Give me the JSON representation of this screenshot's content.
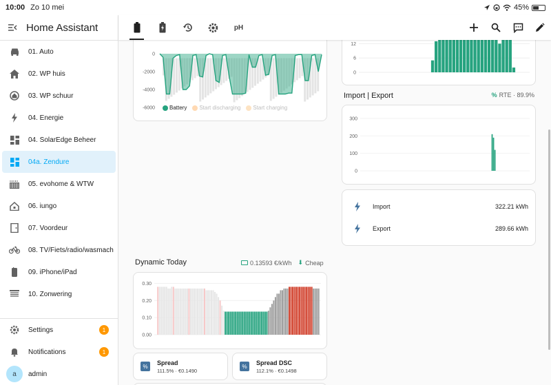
{
  "status": {
    "time": "10:00",
    "date": "Zo 10 mei",
    "battery": "45%"
  },
  "app_title": "Home Assistant",
  "sidebar": {
    "items": [
      {
        "label": "01. Auto",
        "icon": "car-icon",
        "active": false
      },
      {
        "label": "02. WP huis",
        "icon": "home-icon",
        "active": false
      },
      {
        "label": "03. WP schuur",
        "icon": "home-circle-icon",
        "active": false
      },
      {
        "label": "04. Energie",
        "icon": "lightning-icon",
        "active": false
      },
      {
        "label": "04. SolarEdge Beheer",
        "icon": "dashboard-icon",
        "active": false
      },
      {
        "label": "04a. Zendure",
        "icon": "dashboard-icon",
        "active": true
      },
      {
        "label": "05. evohome & WTW",
        "icon": "radiator-icon",
        "active": false
      },
      {
        "label": "06. iungo",
        "icon": "home-outline-icon",
        "active": false
      },
      {
        "label": "07. Voordeur",
        "icon": "door-icon",
        "active": false
      },
      {
        "label": "08. TV/Fiets/radio/wasmach",
        "icon": "bicycle-icon",
        "active": false
      },
      {
        "label": "09. iPhone/iPad",
        "icon": "phone-icon",
        "active": false
      },
      {
        "label": "10. Zonwering",
        "icon": "blinds-icon",
        "active": false
      }
    ],
    "settings_label": "Settings",
    "settings_badge": "1",
    "notifications_label": "Notifications",
    "notifications_badge": "1",
    "user_label": "admin",
    "user_initial": "a"
  },
  "toolbar": {
    "tabs": [
      "battery-icon",
      "battery-charging-icon",
      "history-icon",
      "gear-icon",
      "ph-icon"
    ],
    "ph_label": "pH",
    "actions": [
      "plus-icon",
      "search-icon",
      "assist-icon",
      "pencil-icon"
    ]
  },
  "battery_card": {
    "legend": [
      "Battery",
      "Start discharging",
      "Start charging"
    ],
    "colors": {
      "battery": "#26a37f",
      "discharge": "#ffd9b3",
      "charge": "#fde3c3",
      "band": "#e4e4e4"
    }
  },
  "top_right_card": {
    "y_ticks": [
      "12",
      "6",
      "0"
    ]
  },
  "import_export": {
    "title": "Import | Export",
    "rte": "RTE · 89.9%",
    "y_ticks": [
      "300",
      "200",
      "100",
      "0"
    ],
    "rows": [
      {
        "label": "Import",
        "value": "322.21 kWh"
      },
      {
        "label": "Export",
        "value": "289.66 kWh"
      }
    ]
  },
  "dynamic": {
    "title": "Dynamic Today",
    "price": "0.13593 €/kWh",
    "cheap": "Cheap",
    "y_ticks": [
      "0.30",
      "0.20",
      "0.10",
      "0.00"
    ],
    "colors": {
      "past": "#e6e6e6",
      "cheap": "#26a37f",
      "normal": "#9e9e9e",
      "expensive": "#d2432f",
      "pastmark": "#f6c8c8"
    }
  },
  "tiles": [
    {
      "name": "Spread",
      "sub": "111.5% · €0.1490"
    },
    {
      "name": "Spread DSC",
      "sub": "112.1% · €0.1498"
    }
  ],
  "chart_data": [
    {
      "type": "area",
      "title": "",
      "ylim": [
        -6000,
        0
      ],
      "y_ticks": [
        0,
        -2000,
        -4000,
        -6000
      ],
      "series": [
        {
          "name": "Battery",
          "values": [
            0,
            -400,
            -4500,
            -4500,
            -500,
            -200,
            -100,
            -4000,
            -4000,
            -3600,
            -200,
            -100,
            -2500,
            -2600,
            -200,
            0,
            -100,
            -3000,
            -3200,
            -200,
            -100,
            -2500,
            -4500,
            -4500,
            -4500,
            -4500,
            -4400,
            -100,
            -1500,
            -1500,
            -200,
            -100,
            -2400,
            -2300,
            -200,
            -100,
            -4500,
            -4500,
            -4500,
            -4400,
            -4400,
            -200,
            -100,
            -100,
            -3000,
            -3000,
            -200,
            -100,
            -2000,
            -100
          ]
        }
      ]
    },
    {
      "type": "bar",
      "title": "",
      "ylim": [
        0,
        15
      ],
      "y_ticks": [
        0,
        6,
        12
      ],
      "values": [
        0,
        0,
        0,
        0,
        0,
        0,
        0,
        0,
        0,
        0,
        0,
        0,
        0,
        0,
        0,
        0,
        0,
        0,
        0,
        0,
        5,
        13,
        16,
        16,
        16,
        16,
        16,
        16,
        15,
        16,
        16,
        16,
        16,
        16,
        14,
        16,
        16,
        16,
        14,
        12,
        16,
        16,
        16,
        2,
        0,
        0,
        0,
        0
      ]
    },
    {
      "type": "bar",
      "title": "",
      "ylim": [
        0,
        300
      ],
      "y_ticks": [
        0,
        100,
        200,
        300
      ],
      "values": [
        0,
        0,
        0,
        0,
        0,
        0,
        0,
        0,
        0,
        0,
        0,
        0,
        0,
        0,
        0,
        0,
        0,
        0,
        0,
        0,
        0,
        0,
        0,
        0,
        0,
        0,
        0,
        0,
        0,
        0,
        0,
        0,
        0,
        0,
        0,
        0,
        0,
        0,
        0,
        0,
        0,
        0,
        0,
        0,
        0,
        0,
        0,
        0,
        0,
        0,
        0,
        0,
        0,
        0,
        0,
        0,
        0,
        0,
        0,
        0,
        0,
        0,
        0,
        0,
        0,
        0,
        0,
        0,
        0,
        0,
        0,
        0,
        0,
        0,
        0,
        0,
        0,
        0,
        0,
        0,
        0,
        0,
        0,
        0,
        0,
        0,
        0,
        0,
        0,
        0,
        0,
        0,
        0,
        210,
        190,
        120,
        0,
        0,
        0,
        0,
        0,
        0,
        0,
        0,
        0,
        0,
        0,
        0,
        0,
        0,
        0,
        0,
        0,
        0,
        0,
        0,
        0,
        0,
        0,
        0
      ]
    },
    {
      "type": "bar",
      "title": "",
      "ylim": [
        0,
        0.33
      ],
      "y_ticks": [
        0,
        0.1,
        0.2,
        0.3
      ],
      "values": [
        0.28,
        0.28,
        0.28,
        0.28,
        0.28,
        0.28,
        0.27,
        0.27,
        0.28,
        0.28,
        0.27,
        0.27,
        0.27,
        0.27,
        0.27,
        0.27,
        0.27,
        0.27,
        0.27,
        0.27,
        0.27,
        0.27,
        0.27,
        0.27,
        0.27,
        0.27,
        0.27,
        0.27,
        0.26,
        0.26,
        0.26,
        0.26,
        0.26,
        0.25,
        0.24,
        0.22,
        0.2,
        0.17,
        0.14,
        0.135,
        0.135,
        0.135,
        0.135,
        0.135,
        0.135,
        0.135,
        0.135,
        0.135,
        0.135,
        0.135,
        0.135,
        0.135,
        0.135,
        0.135,
        0.135,
        0.135,
        0.135,
        0.135,
        0.135,
        0.135,
        0.135,
        0.135,
        0.135,
        0.135,
        0.14,
        0.16,
        0.18,
        0.2,
        0.22,
        0.24,
        0.24,
        0.26,
        0.26,
        0.27,
        0.27,
        0.27,
        0.28,
        0.28,
        0.28,
        0.28,
        0.28,
        0.28,
        0.28,
        0.28,
        0.28,
        0.28,
        0.28,
        0.28,
        0.28,
        0.28,
        0.27,
        0.27,
        0.27,
        0.27
      ]
    }
  ]
}
